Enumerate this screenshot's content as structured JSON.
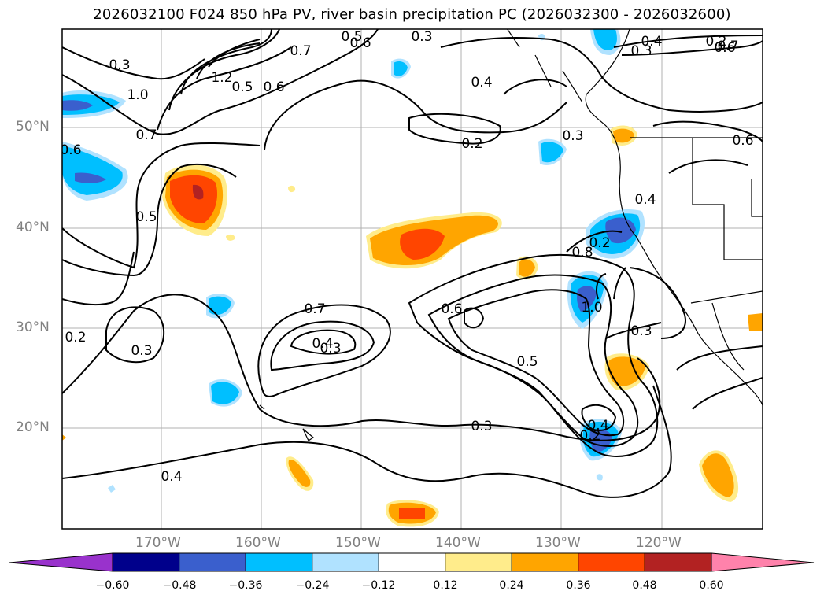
{
  "title": "2026032100 F024 850 hPa PV, river basin precipitation PC (2026032300 - 2026032600)",
  "map": {
    "projection": "lat-lon",
    "lon_range": [
      -180,
      -110
    ],
    "lat_range": [
      10,
      60
    ],
    "lat_labels": [
      "50°N",
      "40°N",
      "30°N",
      "20°N"
    ],
    "lon_labels": [
      "170°W",
      "160°W",
      "150°W",
      "140°W",
      "130°W",
      "120°W"
    ],
    "grid": true
  },
  "contour_labels": [
    "0.3",
    "0.4",
    "0.5",
    "0.6",
    "0.7",
    "1.0",
    "1.2",
    "0.5",
    "0.6",
    "0.7",
    "0.3",
    "0.2",
    "0.4",
    "0.3",
    "0.6",
    "0.2",
    "0.7",
    "0.6",
    "0.3",
    "0.4",
    "0.5",
    "0.6",
    "0.7",
    "0.4",
    "0.3",
    "0.6",
    "0.5",
    "0.8",
    "1.0",
    "0.3",
    "0.2",
    "0.2",
    "0.4",
    "0.3",
    "0.4",
    "0.3",
    "0.2"
  ],
  "colorbar": {
    "ticks": [
      "−0.60",
      "−0.48",
      "−0.36",
      "−0.24",
      "−0.12",
      "0.12",
      "0.24",
      "0.36",
      "0.48",
      "0.60"
    ],
    "colors": [
      "#9932cc",
      "#00008b",
      "#3a5fcd",
      "#00bfff",
      "#b0e2ff",
      "#ffffff",
      "#ffec8b",
      "#ffa500",
      "#ff4500",
      "#b22222",
      "#ff82ab"
    ]
  },
  "legend_colors": {
    "neg_light": "#b0e2ff",
    "neg_mid": "#00bfff",
    "neg_strong": "#3a5fcd",
    "pos_light": "#ffec8b",
    "pos_mid": "#ffa500",
    "pos_strong": "#ff4500",
    "pos_max": "#b22222"
  }
}
